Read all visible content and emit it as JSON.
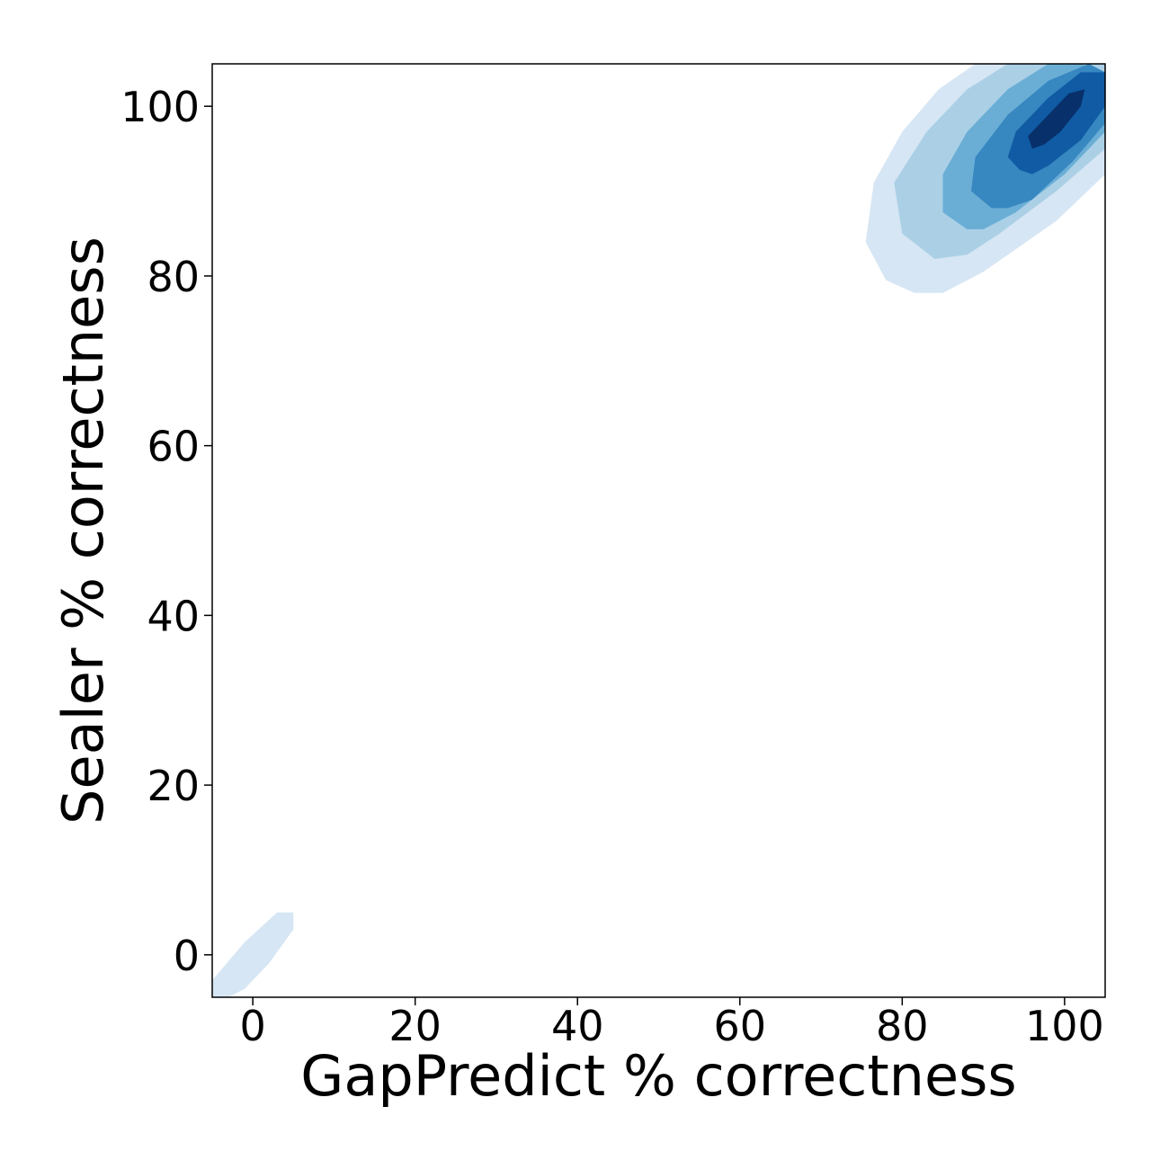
{
  "chart_data": {
    "type": "kde-contour",
    "xlabel": "GapPredict % correctness",
    "ylabel": "Sealer % correctness",
    "xlim": [
      -5,
      105
    ],
    "ylim": [
      -5,
      105
    ],
    "x_ticks": [
      0,
      20,
      40,
      60,
      80,
      100
    ],
    "y_ticks": [
      0,
      20,
      40,
      60,
      80,
      100
    ],
    "tick_labels": [
      "0",
      "20",
      "40",
      "60",
      "80",
      "100"
    ],
    "grid": false,
    "colormap": "Blues",
    "level_colors": [
      "#d6e6f4",
      "#abd0e6",
      "#6aaed6",
      "#3787c0",
      "#105ba4",
      "#08306b"
    ],
    "density_peaks": [
      {
        "x": 98,
        "y": 98,
        "weight": 1.0
      },
      {
        "x": 0,
        "y": 0,
        "weight": 0.1
      }
    ],
    "contour_regions": [
      {
        "level": 1,
        "points": [
          [
            81.5,
            78
          ],
          [
            78,
            79.5
          ],
          [
            75.5,
            84
          ],
          [
            76.5,
            91
          ],
          [
            80,
            97
          ],
          [
            84.5,
            102
          ],
          [
            89,
            105
          ],
          [
            98,
            105
          ],
          [
            105,
            105
          ],
          [
            105,
            92
          ],
          [
            99,
            86.5
          ],
          [
            90,
            80.5
          ],
          [
            85,
            78
          ]
        ]
      },
      {
        "level": 1,
        "points": [
          [
            -5,
            -5
          ],
          [
            -5,
            -3
          ],
          [
            -1,
            1.5
          ],
          [
            3,
            5
          ],
          [
            5,
            5
          ],
          [
            5,
            3
          ],
          [
            2,
            -1
          ],
          [
            -1,
            -4
          ],
          [
            -3,
            -5
          ]
        ]
      },
      {
        "level": 2,
        "points": [
          [
            84,
            82
          ],
          [
            80,
            85
          ],
          [
            79,
            91
          ],
          [
            83,
            97
          ],
          [
            88,
            102
          ],
          [
            93,
            105
          ],
          [
            98,
            105
          ],
          [
            105,
            105
          ],
          [
            105,
            95
          ],
          [
            99,
            90
          ],
          [
            92,
            85
          ],
          [
            88,
            82.5
          ]
        ]
      },
      {
        "level": 3,
        "points": [
          [
            88,
            85.5
          ],
          [
            85,
            87.5
          ],
          [
            85,
            92
          ],
          [
            88,
            97
          ],
          [
            93,
            102
          ],
          [
            98,
            105
          ],
          [
            102,
            105
          ],
          [
            105,
            104
          ],
          [
            105,
            97
          ],
          [
            100,
            92
          ],
          [
            94,
            87.5
          ],
          [
            90,
            85.5
          ]
        ]
      },
      {
        "level": 4,
        "points": [
          [
            91,
            88
          ],
          [
            88.5,
            90
          ],
          [
            89,
            94
          ],
          [
            93,
            99
          ],
          [
            98,
            103
          ],
          [
            103,
            105
          ],
          [
            105,
            104
          ],
          [
            105,
            98
          ],
          [
            101,
            93.5
          ],
          [
            96,
            89
          ],
          [
            93,
            88
          ]
        ]
      },
      {
        "level": 5,
        "points": [
          [
            94.5,
            92.5
          ],
          [
            93,
            94
          ],
          [
            94,
            97
          ],
          [
            98,
            101
          ],
          [
            102,
            104
          ],
          [
            105,
            104
          ],
          [
            105,
            100
          ],
          [
            102,
            96
          ],
          [
            98,
            93
          ],
          [
            96,
            92
          ]
        ]
      },
      {
        "level": 6,
        "points": [
          [
            96,
            95
          ],
          [
            95.5,
            96.5
          ],
          [
            98,
            99
          ],
          [
            100.5,
            101.5
          ],
          [
            102.5,
            102
          ],
          [
            102,
            100
          ],
          [
            99.5,
            97
          ],
          [
            97.5,
            95.5
          ]
        ]
      }
    ]
  }
}
